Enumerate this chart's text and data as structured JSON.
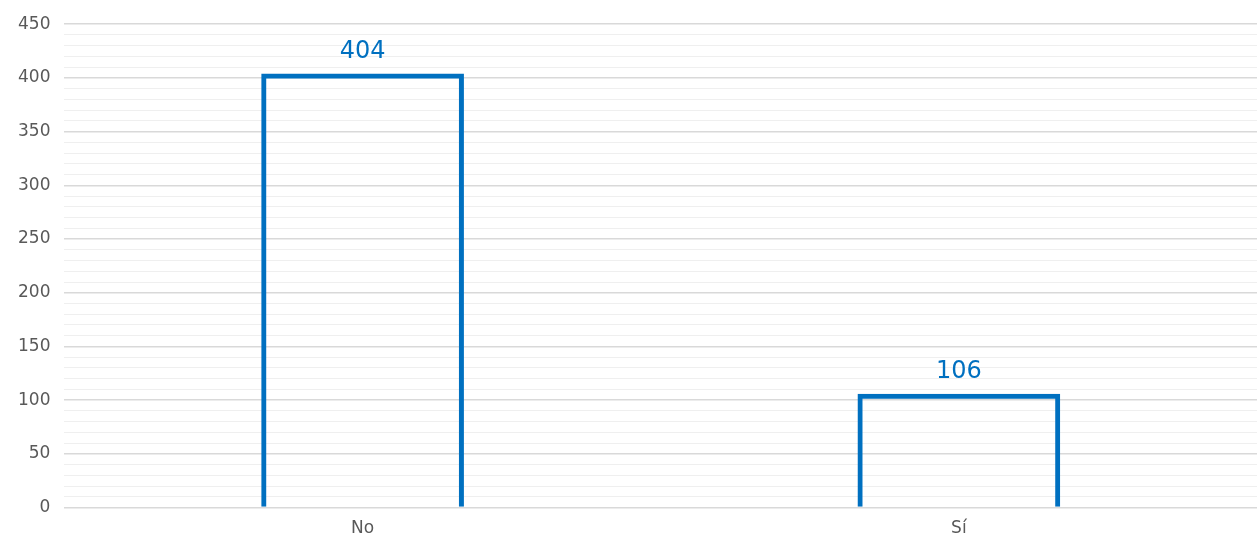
{
  "chart_data": {
    "type": "bar",
    "categories": [
      "No",
      "Sí"
    ],
    "series": [
      {
        "color": "#0070c0",
        "values": [
          404,
          106
        ]
      }
    ],
    "ylim": [
      0,
      450
    ],
    "yticks": [
      0,
      {
        "value": 10,
        "label": null
      },
      {
        "value": 20,
        "label": null
      },
      {
        "value": 30,
        "label": null
      },
      {
        "value": 40,
        "label": null
      },
      50,
      {
        "value": 60,
        "label": null
      },
      {
        "value": 70,
        "label": null
      },
      {
        "value": 80,
        "label": null
      },
      {
        "value": 90,
        "label": null
      },
      100,
      {
        "value": 110,
        "label": null
      },
      {
        "value": 120,
        "label": null
      },
      {
        "value": 130,
        "label": null
      },
      {
        "value": 140,
        "label": null
      },
      150,
      {
        "value": 160,
        "label": null
      },
      {
        "value": 170,
        "label": null
      },
      {
        "value": 180,
        "label": null
      },
      {
        "value": 190,
        "label": null
      },
      200,
      {
        "value": 210,
        "label": null
      },
      {
        "value": 220,
        "label": null
      },
      {
        "value": 230,
        "label": null
      },
      {
        "value": 240,
        "label": null
      },
      250,
      {
        "value": 260,
        "label": null
      },
      {
        "value": 270,
        "label": null
      },
      {
        "value": 280,
        "label": null
      },
      {
        "value": 290,
        "label": null
      },
      300,
      {
        "value": 310,
        "label": null
      },
      {
        "value": 320,
        "label": null
      },
      {
        "value": 330,
        "label": null
      },
      {
        "value": 340,
        "label": null
      },
      350,
      {
        "value": 360,
        "label": null
      },
      {
        "value": 370,
        "label": null
      },
      {
        "value": 380,
        "label": null
      },
      {
        "value": 390,
        "label": null
      },
      400,
      {
        "value": 410,
        "label": null
      },
      {
        "value": 420,
        "label": null
      },
      {
        "value": 430,
        "label": null
      },
      {
        "value": 440,
        "label": null
      },
      450
    ],
    "grid": "y",
    "legend": false,
    "data_labels": true
  }
}
